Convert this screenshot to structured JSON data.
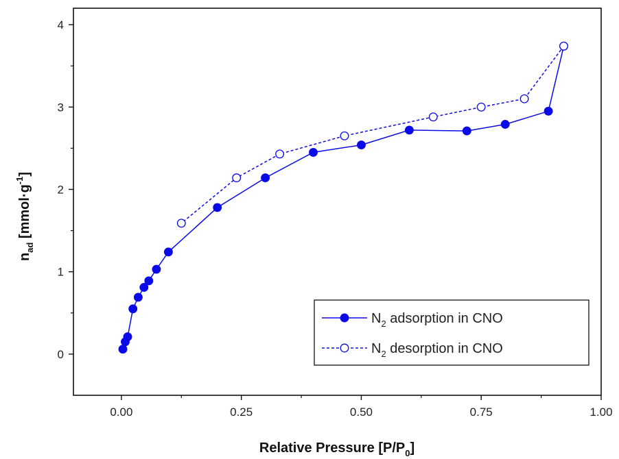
{
  "chart_data": {
    "type": "scatter",
    "title": "",
    "xlabel": {
      "main": "Relative Pressure [P/P",
      "sub": "0",
      "end": "]"
    },
    "ylabel": {
      "main": "n",
      "sub": "ad",
      "rest": " [mmol·g",
      "sup": "-1",
      "end": "]"
    },
    "xlim": [
      -0.1,
      1.0
    ],
    "ylim": [
      -0.5,
      4.2
    ],
    "x_ticks": [
      0.0,
      0.25,
      0.5,
      0.75,
      1.0
    ],
    "x_tick_labels": [
      "0.00",
      "0.25",
      "0.50",
      "0.75",
      "1.00"
    ],
    "y_ticks": [
      0,
      1,
      2,
      3,
      4
    ],
    "y_tick_labels": [
      "0",
      "1",
      "2",
      "3",
      "4"
    ],
    "grid": false,
    "legend_position": "bottom-right",
    "series": [
      {
        "name": "N2 adsorption in CNO",
        "legend": {
          "prefix": "N",
          "sub": "2",
          "suffix": " adsorption in CNO"
        },
        "line": "solid",
        "marker": "filled-circle",
        "color": "#0a0ae6",
        "points": [
          [
            0.003,
            0.06
          ],
          [
            0.008,
            0.15
          ],
          [
            0.013,
            0.21
          ],
          [
            0.024,
            0.55
          ],
          [
            0.035,
            0.69
          ],
          [
            0.047,
            0.81
          ],
          [
            0.057,
            0.89
          ],
          [
            0.073,
            1.03
          ],
          [
            0.098,
            1.24
          ],
          [
            0.2,
            1.78
          ],
          [
            0.3,
            2.14
          ],
          [
            0.4,
            2.45
          ],
          [
            0.5,
            2.54
          ],
          [
            0.6,
            2.72
          ],
          [
            0.72,
            2.71
          ],
          [
            0.8,
            2.79
          ],
          [
            0.89,
            2.95
          ],
          [
            0.922,
            3.74
          ]
        ]
      },
      {
        "name": "N2 desorption in CNO",
        "legend": {
          "prefix": "N",
          "sub": "2",
          "suffix": " desorption in CNO"
        },
        "line": "dashed",
        "marker": "open-circle",
        "color": "#0a0ae6",
        "points": [
          [
            0.922,
            3.74
          ],
          [
            0.84,
            3.1
          ],
          [
            0.75,
            3.0
          ],
          [
            0.65,
            2.88
          ],
          [
            0.465,
            2.65
          ],
          [
            0.33,
            2.43
          ],
          [
            0.24,
            2.14
          ],
          [
            0.125,
            1.59
          ]
        ]
      }
    ]
  }
}
